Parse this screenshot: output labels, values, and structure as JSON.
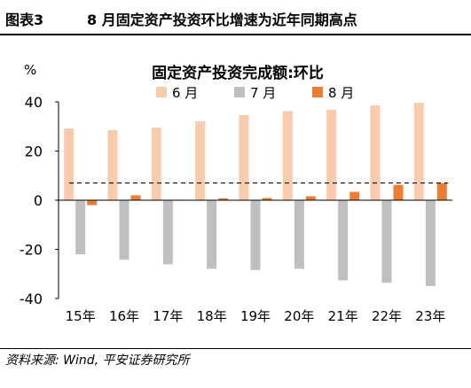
{
  "header": {
    "figure_number": "图表3",
    "figure_title": "8 月固定资产投资环比增速为近年同期高点"
  },
  "footer": {
    "source": "资料来源: Wind, 平安证券研究所"
  },
  "chart_data": {
    "type": "bar",
    "title": "固定资产投资完成额:环比",
    "ylabel": "%",
    "xlabel": "",
    "categories": [
      "15年",
      "16年",
      "17年",
      "18年",
      "19年",
      "20年",
      "21年",
      "22年",
      "23年"
    ],
    "ylim": [
      -40,
      40
    ],
    "yticks": [
      40,
      20,
      0,
      -20,
      -40
    ],
    "grid": false,
    "legend_position": "top",
    "reference_line": {
      "y": 7,
      "style": "dashed"
    },
    "series": [
      {
        "name": "6 月",
        "color": "#f8cbad",
        "values": [
          29.2,
          28.5,
          29.6,
          32.1,
          34.6,
          36.3,
          36.8,
          38.6,
          39.7
        ]
      },
      {
        "name": "7 月",
        "color": "#bfbfbf",
        "values": [
          -22.0,
          -24.2,
          -26.1,
          -27.9,
          -28.4,
          -27.9,
          -32.6,
          -33.6,
          -34.9
        ]
      },
      {
        "name": "8 月",
        "color": "#ed7d31",
        "values": [
          -2.0,
          2.0,
          0.2,
          0.8,
          0.9,
          1.6,
          3.4,
          6.2,
          6.9
        ]
      }
    ]
  }
}
